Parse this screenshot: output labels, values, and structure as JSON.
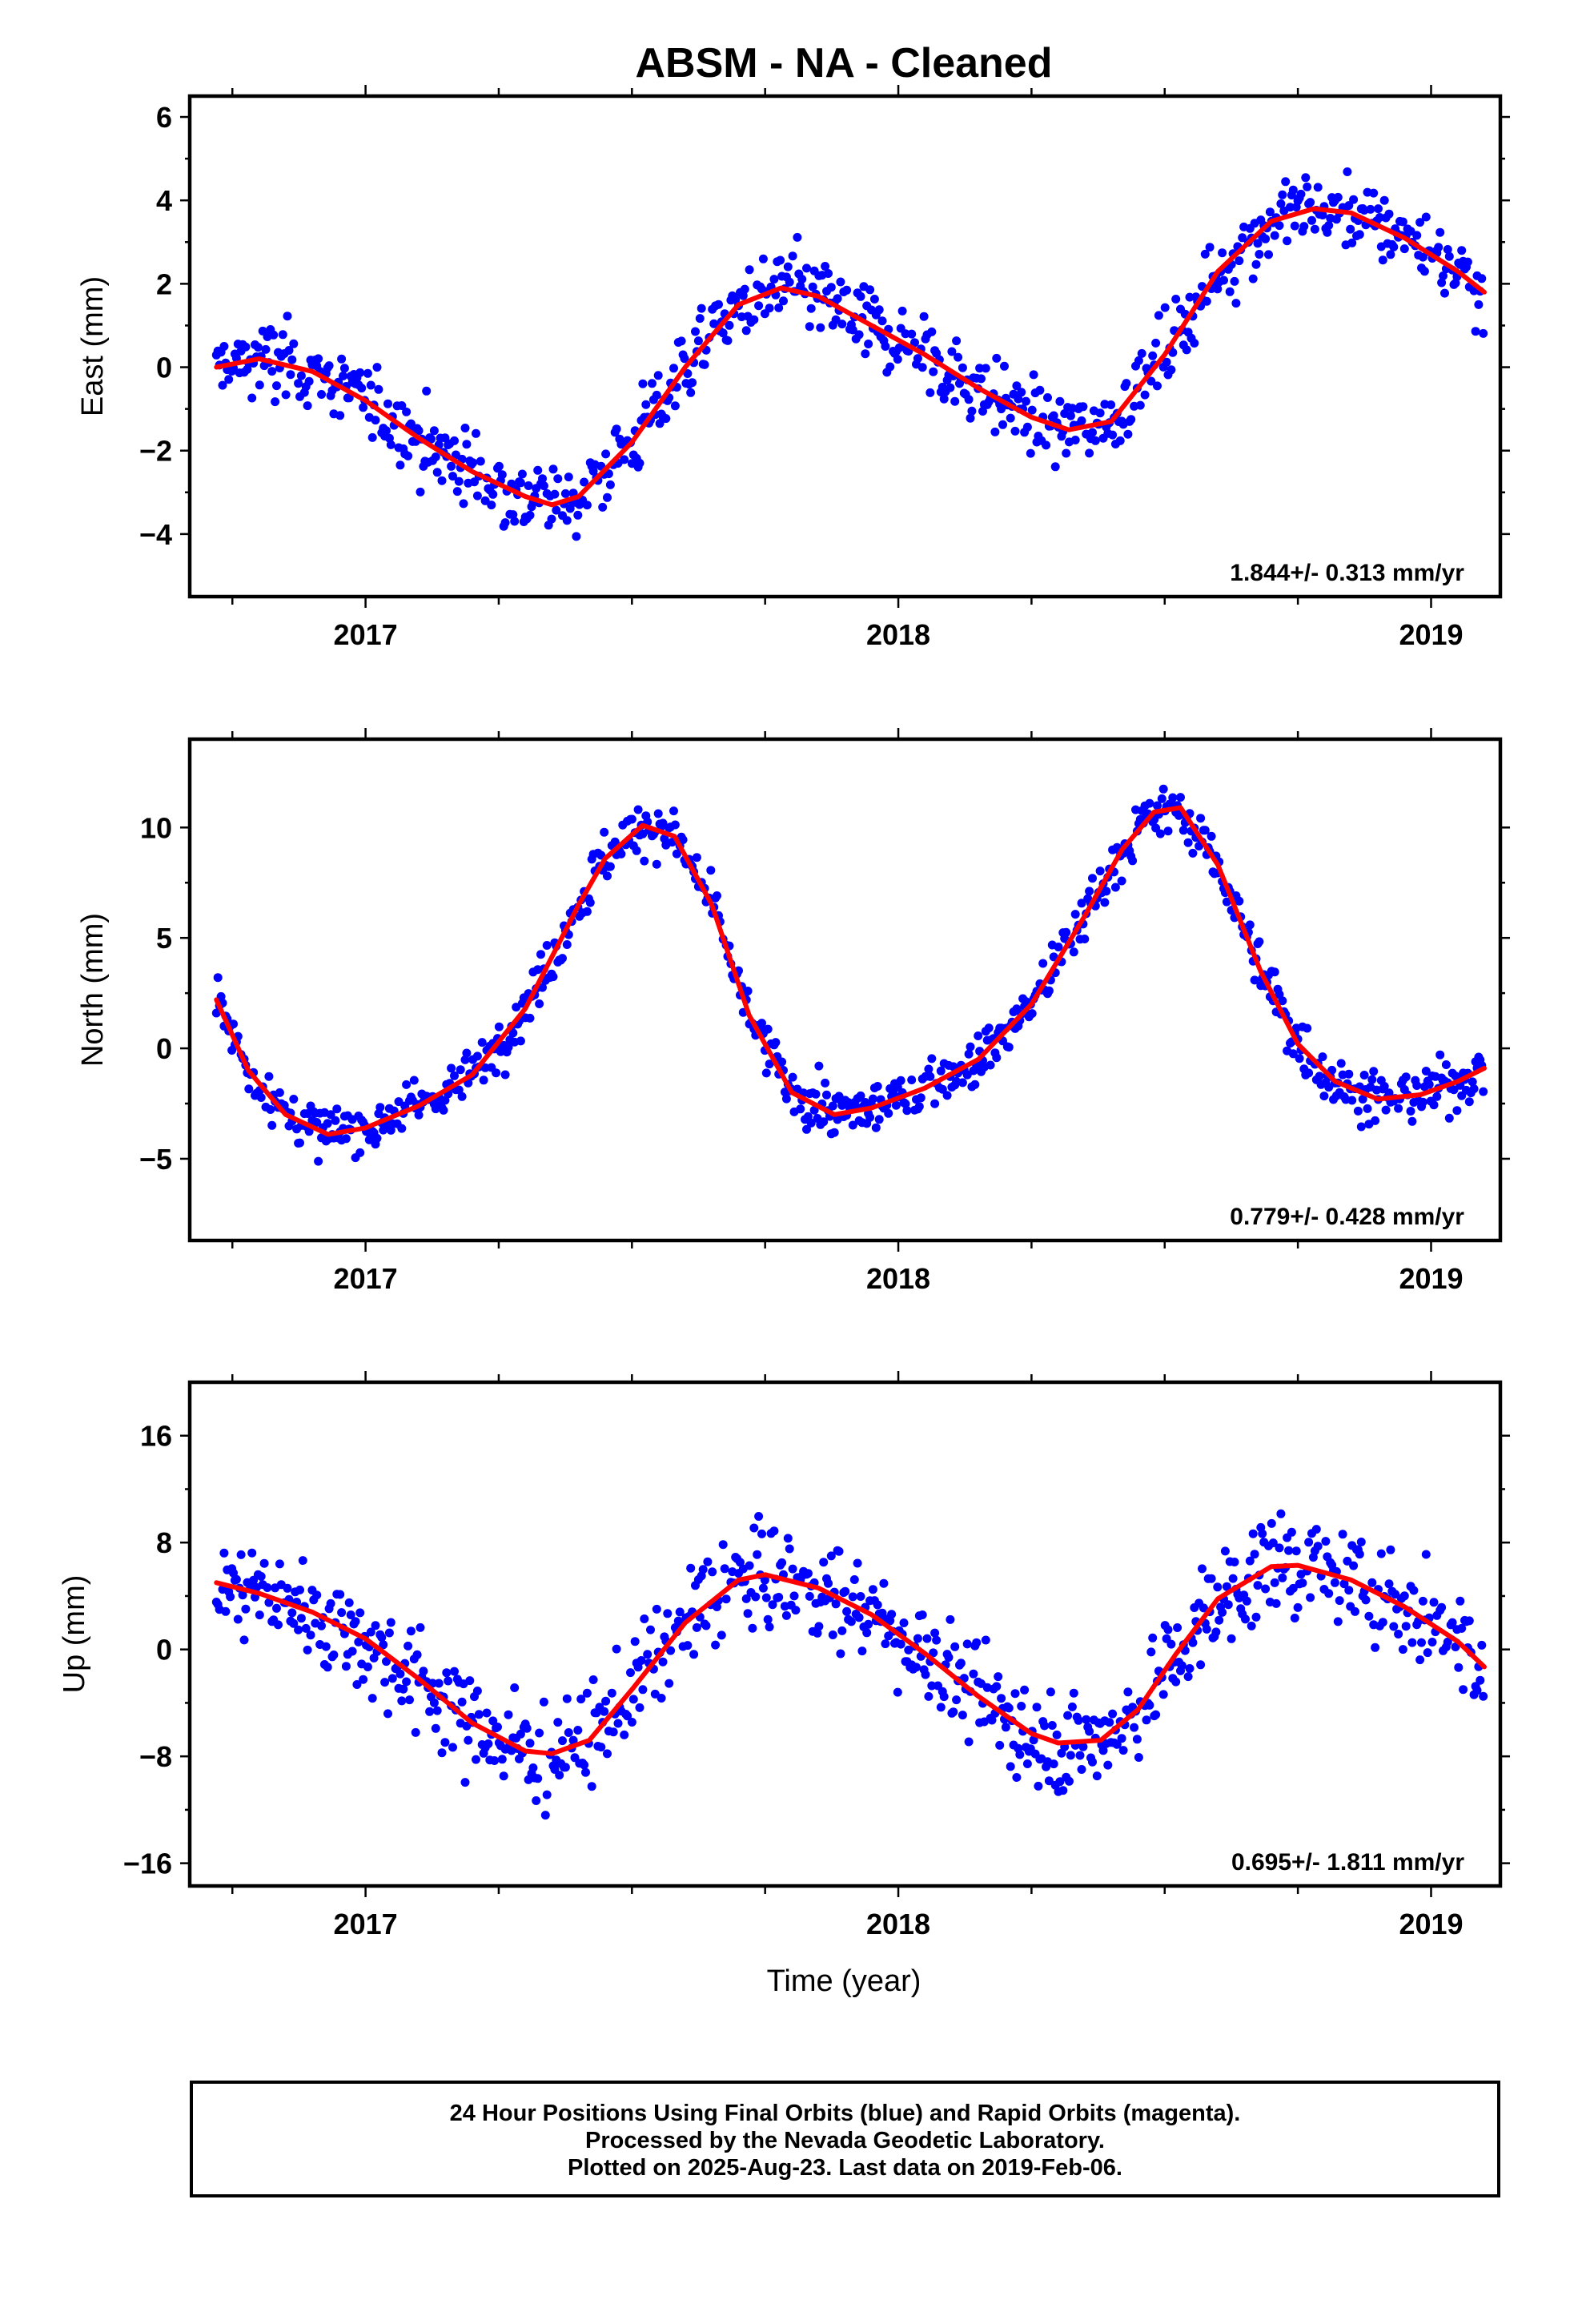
{
  "title": "ABSM  - NA - Cleaned",
  "x_axis_title": "Time (year)",
  "footer": {
    "line1": "24 Hour Positions Using Final Orbits (blue) and Rapid Orbits (magenta).",
    "line2": "Processed by the Nevada Geodetic Laboratory.",
    "line3": "Plotted on 2025-Aug-23. Last data on 2019-Feb-06."
  },
  "colors": {
    "points": "#0000ff",
    "fit": "#ff0000",
    "axes": "#000000"
  },
  "chart_data": [
    {
      "type": "scatter",
      "component": "East",
      "ylabel": "East (mm)",
      "xlim": [
        2016.67,
        2019.13
      ],
      "ylim": [
        -5.5,
        6.5
      ],
      "yticks": [
        -4,
        -2,
        0,
        2,
        4,
        6
      ],
      "xticks": [
        2017,
        2018,
        2019
      ],
      "rate_label": "1.844+/- 0.313 mm/yr",
      "fit": {
        "x": [
          2016.72,
          2016.8,
          2016.9,
          2017.0,
          2017.1,
          2017.2,
          2017.3,
          2017.35,
          2017.4,
          2017.5,
          2017.6,
          2017.7,
          2017.78,
          2017.85,
          2017.95,
          2018.05,
          2018.15,
          2018.25,
          2018.32,
          2018.4,
          2018.5,
          2018.6,
          2018.7,
          2018.78,
          2018.85,
          2018.95,
          2019.05,
          2019.1
        ],
        "y": [
          0.0,
          0.2,
          -0.1,
          -0.8,
          -1.7,
          -2.5,
          -3.1,
          -3.3,
          -3.1,
          -1.8,
          0.0,
          1.5,
          1.9,
          1.7,
          1.0,
          0.3,
          -0.5,
          -1.2,
          -1.5,
          -1.3,
          0.3,
          2.3,
          3.5,
          3.8,
          3.7,
          3.1,
          2.3,
          1.8
        ]
      },
      "points_summary": "≈900 daily positions scattered about the fit with ~1 mm spread"
    },
    {
      "type": "scatter",
      "component": "North",
      "ylabel": "North (mm)",
      "xlim": [
        2016.67,
        2019.13
      ],
      "ylim": [
        -8.7,
        14.0
      ],
      "yticks": [
        -5,
        0,
        5,
        10
      ],
      "xticks": [
        2017,
        2018,
        2019
      ],
      "rate_label": "0.779+/- 0.428 mm/yr",
      "fit": {
        "x": [
          2016.72,
          2016.78,
          2016.85,
          2016.93,
          2017.0,
          2017.1,
          2017.2,
          2017.3,
          2017.4,
          2017.45,
          2017.52,
          2017.58,
          2017.65,
          2017.72,
          2017.8,
          2017.88,
          2017.95,
          2018.05,
          2018.15,
          2018.25,
          2018.35,
          2018.42,
          2018.48,
          2018.53,
          2018.6,
          2018.68,
          2018.75,
          2018.82,
          2018.9,
          2018.98,
          2019.05,
          2019.1
        ],
        "y": [
          2.2,
          -1.0,
          -3.0,
          -3.9,
          -3.6,
          -2.6,
          -1.2,
          1.8,
          6.5,
          8.6,
          10.1,
          9.6,
          6.5,
          1.5,
          -2.0,
          -3.0,
          -2.7,
          -1.8,
          -0.5,
          2.0,
          6.0,
          9.0,
          10.7,
          10.9,
          8.3,
          3.5,
          0.2,
          -1.5,
          -2.3,
          -2.1,
          -1.5,
          -0.9
        ]
      },
      "points_summary": "≈900 daily positions scattered about the fit with ~1.5 mm spread"
    },
    {
      "type": "scatter",
      "component": "Up",
      "ylabel": "Up (mm)",
      "xlim": [
        2016.67,
        2019.13
      ],
      "ylim": [
        -17.7,
        20.0
      ],
      "yticks": [
        -16,
        -8,
        0,
        8,
        16
      ],
      "xticks": [
        2017,
        2018,
        2019
      ],
      "rate_label": "0.695+/- 1.811 mm/yr",
      "fit": {
        "x": [
          2016.72,
          2016.8,
          2016.9,
          2017.0,
          2017.1,
          2017.2,
          2017.3,
          2017.35,
          2017.42,
          2017.5,
          2017.6,
          2017.7,
          2017.75,
          2017.85,
          2017.95,
          2018.05,
          2018.15,
          2018.25,
          2018.3,
          2018.38,
          2018.45,
          2018.52,
          2018.6,
          2018.7,
          2018.75,
          2018.85,
          2018.95,
          2019.05,
          2019.1
        ],
        "y": [
          5.0,
          4.2,
          2.8,
          0.8,
          -2.2,
          -5.5,
          -7.6,
          -7.8,
          -6.8,
          -3.0,
          2.0,
          5.2,
          5.6,
          4.6,
          2.6,
          -0.3,
          -3.5,
          -6.3,
          -7.0,
          -6.8,
          -4.5,
          -0.4,
          3.8,
          6.2,
          6.3,
          5.2,
          3.2,
          0.6,
          -1.3
        ]
      },
      "points_summary": "≈900 daily positions scattered about the fit with ~4 mm spread"
    }
  ]
}
